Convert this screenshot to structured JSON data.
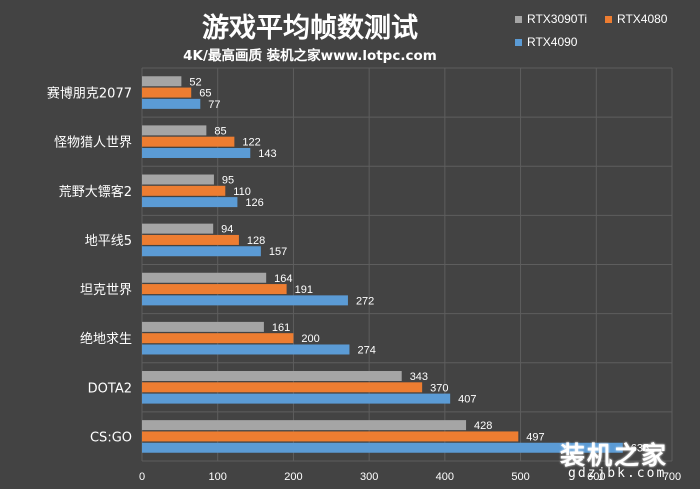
{
  "title": "游戏平均帧数测试",
  "subtitle": "4K/最高画质 装机之家www.lotpc.com",
  "watermark": {
    "main": "装机之家",
    "sub": "gdzjbk.com"
  },
  "colors": {
    "background": "#434343",
    "grid": "#5e5e5e",
    "text": "#ffffff"
  },
  "chart_data": {
    "type": "bar",
    "orientation": "horizontal",
    "categories": [
      "赛博朋克2077",
      "怪物猎人世界",
      "荒野大镖客2",
      "地平线5",
      "坦克世界",
      "绝地求生",
      "DOTA2",
      "CS:GO"
    ],
    "series": [
      {
        "name": "RTX3090Ti",
        "color": "#a5a5a5",
        "values": [
          52,
          85,
          95,
          94,
          164,
          161,
          343,
          428
        ]
      },
      {
        "name": "RTX4080",
        "color": "#ed7d31",
        "values": [
          65,
          122,
          110,
          128,
          191,
          200,
          370,
          497
        ]
      },
      {
        "name": "RTX4090",
        "color": "#5b9bd5",
        "values": [
          77,
          143,
          126,
          157,
          272,
          274,
          407,
          635
        ]
      }
    ],
    "xlim": [
      0,
      700
    ],
    "xticks": [
      0,
      100,
      200,
      300,
      400,
      500,
      600,
      700
    ],
    "grid": true,
    "legend_position": "top-right"
  }
}
